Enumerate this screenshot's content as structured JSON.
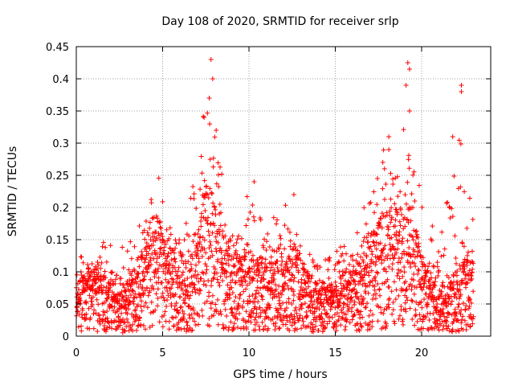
{
  "chart_data": {
    "type": "scatter",
    "title": "Day 108 of 2020, SRMTID for receiver srlp",
    "xlabel": "GPS time / hours",
    "ylabel": "SRMTID / TECUs",
    "xlim": [
      0,
      24
    ],
    "ylim": [
      0,
      0.45
    ],
    "x_ticks": [
      "0",
      "5",
      "10",
      "15",
      "20"
    ],
    "y_ticks": [
      "0",
      "0.05",
      "0.1",
      "0.15",
      "0.2",
      "0.25",
      "0.3",
      "0.35",
      "0.4",
      "0.45"
    ],
    "grid": true,
    "marker": "+",
    "color": "#ff0000",
    "series": [
      {
        "name": "srlp",
        "profile": {
          "x": [
            0.0,
            0.5,
            1.0,
            2.0,
            3.0,
            4.0,
            4.5,
            5.0,
            5.5,
            6.0,
            7.0,
            7.5,
            8.0,
            8.5,
            9.0,
            10.0,
            11.0,
            12.0,
            12.5,
            13.0,
            14.0,
            15.0,
            16.0,
            17.0,
            18.0,
            18.5,
            19.0,
            19.5,
            20.0,
            21.0,
            22.0,
            22.5,
            23.0
          ],
          "y_typical": [
            0.05,
            0.06,
            0.07,
            0.06,
            0.05,
            0.09,
            0.12,
            0.1,
            0.08,
            0.06,
            0.09,
            0.14,
            0.13,
            0.1,
            0.08,
            0.08,
            0.07,
            0.07,
            0.09,
            0.07,
            0.05,
            0.05,
            0.07,
            0.1,
            0.12,
            0.12,
            0.13,
            0.12,
            0.07,
            0.05,
            0.06,
            0.08,
            0.08
          ],
          "y_upper": [
            0.1,
            0.15,
            0.13,
            0.17,
            0.14,
            0.2,
            0.26,
            0.24,
            0.16,
            0.15,
            0.27,
            0.43,
            0.32,
            0.24,
            0.16,
            0.23,
            0.16,
            0.22,
            0.18,
            0.15,
            0.12,
            0.15,
            0.18,
            0.22,
            0.31,
            0.25,
            0.42,
            0.26,
            0.24,
            0.15,
            0.3,
            0.39,
            0.28
          ]
        },
        "peaks": [
          {
            "x": 7.8,
            "y": 0.43
          },
          {
            "x": 7.9,
            "y": 0.4
          },
          {
            "x": 7.7,
            "y": 0.37
          },
          {
            "x": 7.4,
            "y": 0.34
          },
          {
            "x": 8.1,
            "y": 0.32
          },
          {
            "x": 19.2,
            "y": 0.425
          },
          {
            "x": 19.3,
            "y": 0.415
          },
          {
            "x": 19.1,
            "y": 0.39
          },
          {
            "x": 19.3,
            "y": 0.35
          },
          {
            "x": 22.3,
            "y": 0.39
          },
          {
            "x": 22.3,
            "y": 0.38
          },
          {
            "x": 21.8,
            "y": 0.31
          },
          {
            "x": 18.1,
            "y": 0.31
          },
          {
            "x": 18.1,
            "y": 0.29
          },
          {
            "x": 10.3,
            "y": 0.24
          },
          {
            "x": 12.6,
            "y": 0.22
          }
        ]
      }
    ]
  }
}
